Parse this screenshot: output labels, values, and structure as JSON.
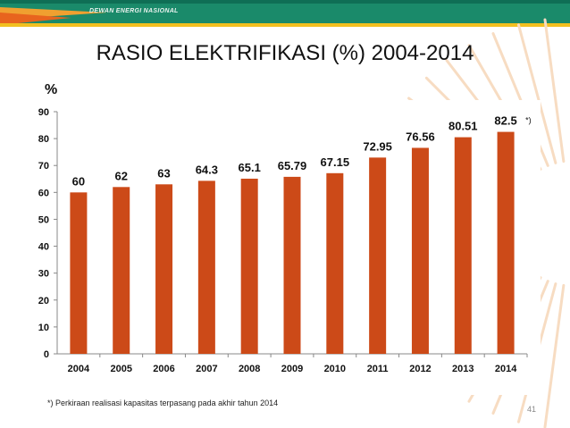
{
  "header": {
    "org_text": "DEWAN ENERGI NASIONAL"
  },
  "colors": {
    "bar": "#cc4a18",
    "banner_green": "#1a8a6a",
    "banner_orange": "#f0a030",
    "sunburst": "#f7dcc2"
  },
  "chart_data": {
    "type": "bar",
    "title": "RASIO ELEKTRIFIKASI (%) 2004-2014",
    "ylabel": "%",
    "xlabel": "",
    "categories": [
      "2004",
      "2005",
      "2006",
      "2007",
      "2008",
      "2009",
      "2010",
      "2011",
      "2012",
      "2013",
      "2014"
    ],
    "values": [
      60,
      62,
      63,
      64.3,
      65.1,
      65.79,
      67.15,
      72.95,
      76.56,
      80.51,
      82.5
    ],
    "value_labels": [
      "60",
      "62",
      "63",
      "64.3",
      "65.1",
      "65.79",
      "67.15",
      "72.95",
      "76.56",
      "80.51",
      "82.5"
    ],
    "yticks": [
      "0",
      "10",
      "20",
      "30",
      "40",
      "50",
      "60",
      "70",
      "80",
      "90"
    ],
    "ylim": [
      0,
      90
    ],
    "grid": false,
    "annotation": "*)"
  },
  "footnote": "*) Perkiraan realisasi kapasitas terpasang pada akhir tahun 2014",
  "page_number": "41"
}
